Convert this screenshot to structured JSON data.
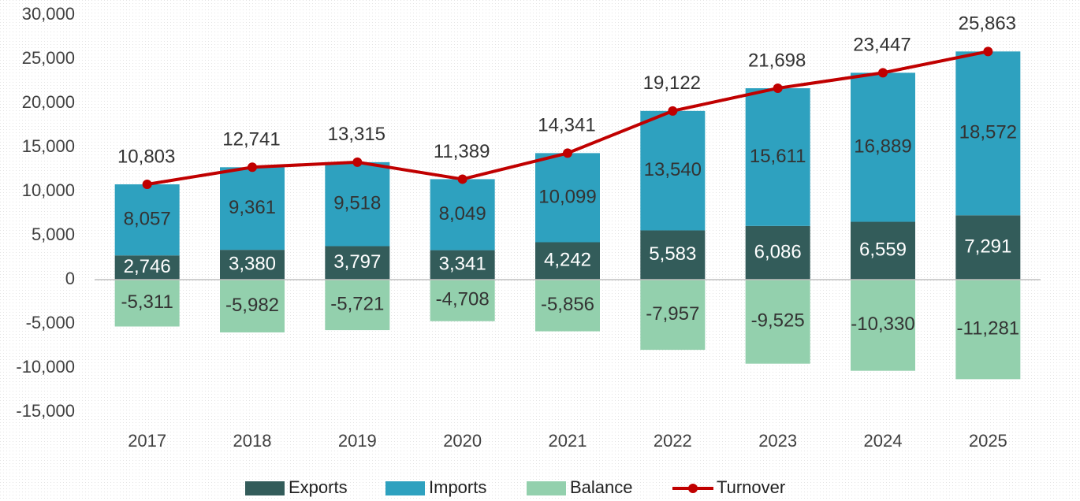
{
  "chart_data": {
    "type": "bar",
    "categories": [
      "2017",
      "2018",
      "2019",
      "2020",
      "2021",
      "2022",
      "2023",
      "2024",
      "2025"
    ],
    "ylim": [
      -15000,
      30000
    ],
    "yticks": [
      {
        "value": -15000,
        "label": "-15,000"
      },
      {
        "value": -10000,
        "label": "-10,000"
      },
      {
        "value": -5000,
        "label": "-5,000"
      },
      0,
      {
        "value": 5000,
        "label": "5,000"
      },
      {
        "value": 10000,
        "label": "10,000"
      },
      {
        "value": 15000,
        "label": "15,000"
      },
      {
        "value": 20000,
        "label": "20,000"
      },
      {
        "value": 25000,
        "label": "25,000"
      },
      {
        "value": 30000,
        "label": "30,000"
      }
    ],
    "grid": false,
    "legend": "bottom",
    "series": [
      {
        "name": "Exports",
        "color": "#335c5a",
        "stack": "positive",
        "values": [
          2746,
          3380,
          3797,
          3341,
          4242,
          5583,
          6086,
          6559,
          7291
        ],
        "value_labels": [
          "2,746",
          "3,380",
          "3,797",
          "3,341",
          "4,242",
          "5,583",
          "6,086",
          "6,559",
          "7,291"
        ]
      },
      {
        "name": "Imports",
        "color": "#2ea1bf",
        "stack": "positive",
        "values": [
          8057,
          9361,
          9518,
          8049,
          10099,
          13540,
          15611,
          16889,
          18572
        ],
        "value_labels": [
          "8,057",
          "9,361",
          "9,518",
          "8,049",
          "10,099",
          "13,540",
          "15,611",
          "16,889",
          "18,572"
        ]
      },
      {
        "name": "Balance",
        "color": "#93d0ad",
        "stack": "negative",
        "values": [
          -5311,
          -5982,
          -5721,
          -4708,
          -5856,
          -7957,
          -9525,
          -10330,
          -11281
        ],
        "value_labels": [
          "-5,311",
          "-5,982",
          "-5,721",
          "-4,708",
          "-5,856",
          "-7,957",
          "-9,525",
          "-10,330",
          "-11,281"
        ]
      },
      {
        "name": "Turnover",
        "color": "#c00000",
        "type": "line",
        "values": [
          10803,
          12741,
          13315,
          11389,
          14341,
          19122,
          21698,
          23447,
          25863
        ],
        "value_labels": [
          "10,803",
          "12,741",
          "13,315",
          "11,389",
          "14,341",
          "19,122",
          "21,698",
          "23,447",
          "25,863"
        ]
      }
    ]
  }
}
